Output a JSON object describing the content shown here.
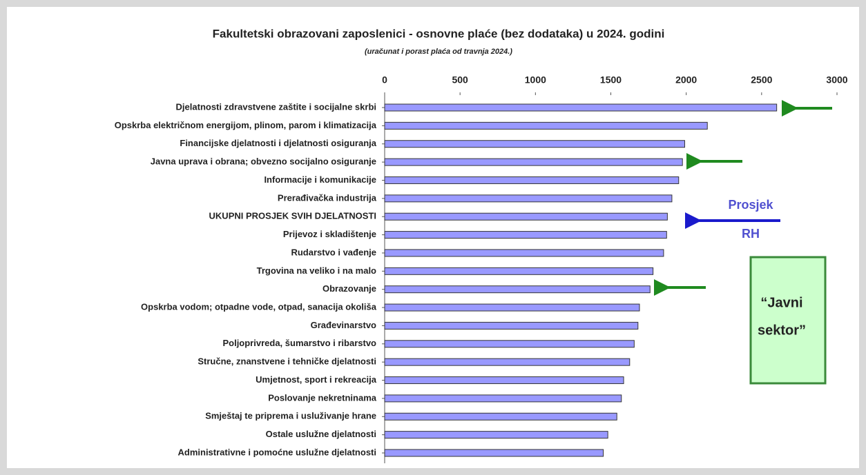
{
  "chart_data": {
    "type": "bar",
    "orientation": "horizontal",
    "title": "Fakultetski obrazovani zaposlenici - osnovne plaće (bez dodataka) u 2024. godini",
    "subtitle": "(uračunat i porast plaća od travnja 2024.)",
    "categories": [
      "Djelatnosti zdravstvene zaštite i socijalne skrbi",
      "Opskrba električnom energijom, plinom, parom i klimatizacija",
      "Financijske djelatnosti i djelatnosti osiguranja",
      "Javna uprava i obrana; obvezno socijalno osiguranje",
      "Informacije i komunikacije",
      "Prerađivačka industrija",
      "UKUPNI PROSJEK SVIH DJELATNOSTI",
      "Prijevoz i skladištenje",
      "Rudarstvo i vađenje",
      "Trgovina na veliko i na malo",
      "Obrazovanje",
      "Opskrba vodom; otpadne vode, otpad, sanacija okoliša",
      "Građevinarstvo",
      "Poljoprivreda, šumarstvo i ribarstvo",
      "Stručne, znanstvene i tehničke djelatnosti",
      "Umjetnost, sport i rekreacija",
      "Poslovanje nekretninama",
      "Smještaj te priprema i usluživanje hrane",
      "Ostale uslužne djelatnosti",
      "Administrativne i pomoćne uslužne djelatnosti"
    ],
    "values": [
      2600,
      2140,
      1990,
      1975,
      1950,
      1905,
      1875,
      1870,
      1850,
      1780,
      1760,
      1690,
      1680,
      1655,
      1625,
      1585,
      1570,
      1540,
      1480,
      1450
    ],
    "color": "#9999ff",
    "xlim": [
      0,
      3000
    ],
    "xticks": [
      0,
      500,
      1000,
      1500,
      2000,
      2500,
      3000
    ],
    "annotations": {
      "average": [
        "Prosjek",
        "RH"
      ],
      "public_sector": [
        "“Javni",
        "sektor”"
      ]
    }
  }
}
